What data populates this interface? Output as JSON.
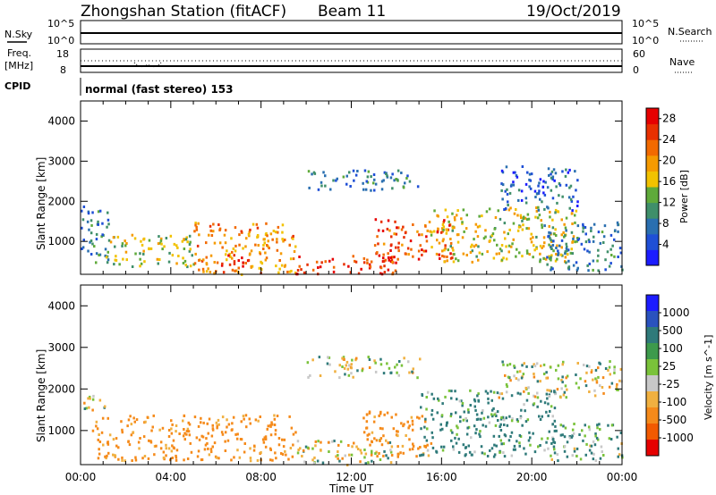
{
  "header": {
    "title": "Zhongshan Station (fitACF)",
    "beam": "Beam 11",
    "date": "19/Oct/2019"
  },
  "top_panels": {
    "nsky_label": "N.Sky",
    "nsky_ticks": [
      "10^5",
      "10^0"
    ],
    "nsearch_label": "N.Search",
    "nsearch_ticks": [
      "10^5",
      "10^0"
    ],
    "freq_label": "Freq.",
    "freq_unit": "[MHz]",
    "freq_ticks": [
      "18",
      "8"
    ],
    "nave_label": "Nave",
    "nave_ticks": [
      "60",
      "0"
    ],
    "cpid_label": "CPID",
    "cpid_text": "normal (fast stereo) 153"
  },
  "colors": {
    "power_scale": [
      "#1c1cff",
      "#1f4fd6",
      "#2a6fb0",
      "#3f8f6a",
      "#5faa3a",
      "#f2c200",
      "#f59a00",
      "#f26a00",
      "#e83000",
      "#e60000"
    ],
    "velocity_scale": [
      "#1c1cff",
      "#2a52be",
      "#2f7a7a",
      "#3d9a4c",
      "#7ac23a",
      "#c8c8c8",
      "#f0b040",
      "#f58a1a",
      "#f25a00",
      "#e60000"
    ]
  },
  "chart_data": [
    {
      "type": "heatmap",
      "title": "",
      "ylabel": "Slant Range [km]",
      "xlabel": "",
      "xlim": [
        "00:00",
        "00:00"
      ],
      "ylim": [
        180,
        4500
      ],
      "y_ticks": [
        "1000",
        "2000",
        "3000",
        "4000"
      ],
      "colorbar": {
        "label": "Power [dB]",
        "ticks": [
          "4",
          "8",
          "12",
          "16",
          "20",
          "24",
          "28"
        ],
        "range": [
          0,
          30
        ]
      },
      "regions": [
        {
          "t0": 0.0,
          "t1": 1.3,
          "r0": 500,
          "r1": 1900,
          "value": 8
        },
        {
          "t0": 1.0,
          "t1": 5.0,
          "r0": 400,
          "r1": 1200,
          "value": 15
        },
        {
          "t0": 5.0,
          "t1": 9.5,
          "r0": 200,
          "r1": 1500,
          "value": 20
        },
        {
          "t0": 6.0,
          "t1": 7.5,
          "r0": 250,
          "r1": 700,
          "value": 28
        },
        {
          "t0": 9.5,
          "t1": 14.0,
          "r0": 200,
          "r1": 700,
          "value": 26
        },
        {
          "t0": 10.0,
          "t1": 15.0,
          "r0": 2300,
          "r1": 2800,
          "value": 8
        },
        {
          "t0": 13.0,
          "t1": 16.5,
          "r0": 500,
          "r1": 1600,
          "value": 24
        },
        {
          "t0": 15.5,
          "t1": 22.0,
          "r0": 500,
          "r1": 1900,
          "value": 16
        },
        {
          "t0": 18.5,
          "t1": 22.0,
          "r0": 1800,
          "r1": 2900,
          "value": 6
        },
        {
          "t0": 20.5,
          "t1": 24.0,
          "r0": 300,
          "r1": 1500,
          "value": 8
        }
      ]
    },
    {
      "type": "heatmap",
      "title": "",
      "ylabel": "Slant Range [km]",
      "xlabel": "Time UT",
      "x_ticks": [
        "00:00",
        "04:00",
        "08:00",
        "12:00",
        "16:00",
        "20:00",
        "00:00"
      ],
      "ylim": [
        180,
        4500
      ],
      "y_ticks": [
        "1000",
        "2000",
        "3000",
        "4000"
      ],
      "colorbar": {
        "label": "Velocity [m s^-1]",
        "ticks": [
          "1000",
          "500",
          "100",
          "25",
          "-25",
          "-100",
          "-500",
          "-1000"
        ],
        "range": [
          -1000,
          1000
        ]
      },
      "regions": [
        {
          "t0": 0.0,
          "t1": 1.3,
          "r0": 1500,
          "r1": 1900,
          "value": 0
        },
        {
          "t0": 0.5,
          "t1": 9.5,
          "r0": 300,
          "r1": 1400,
          "value": -200
        },
        {
          "t0": 9.5,
          "t1": 14.0,
          "r0": 200,
          "r1": 800,
          "value": 0
        },
        {
          "t0": 10.0,
          "t1": 15.0,
          "r0": 2300,
          "r1": 2800,
          "value": 0
        },
        {
          "t0": 12.5,
          "t1": 15.5,
          "r0": 400,
          "r1": 1500,
          "value": -200
        },
        {
          "t0": 15.0,
          "t1": 21.0,
          "r0": 400,
          "r1": 2000,
          "value": 150
        },
        {
          "t0": 18.5,
          "t1": 24.0,
          "r0": 1800,
          "r1": 2700,
          "value": 0
        },
        {
          "t0": 20.5,
          "t1": 24.0,
          "r0": 300,
          "r1": 1200,
          "value": 100
        }
      ]
    }
  ]
}
